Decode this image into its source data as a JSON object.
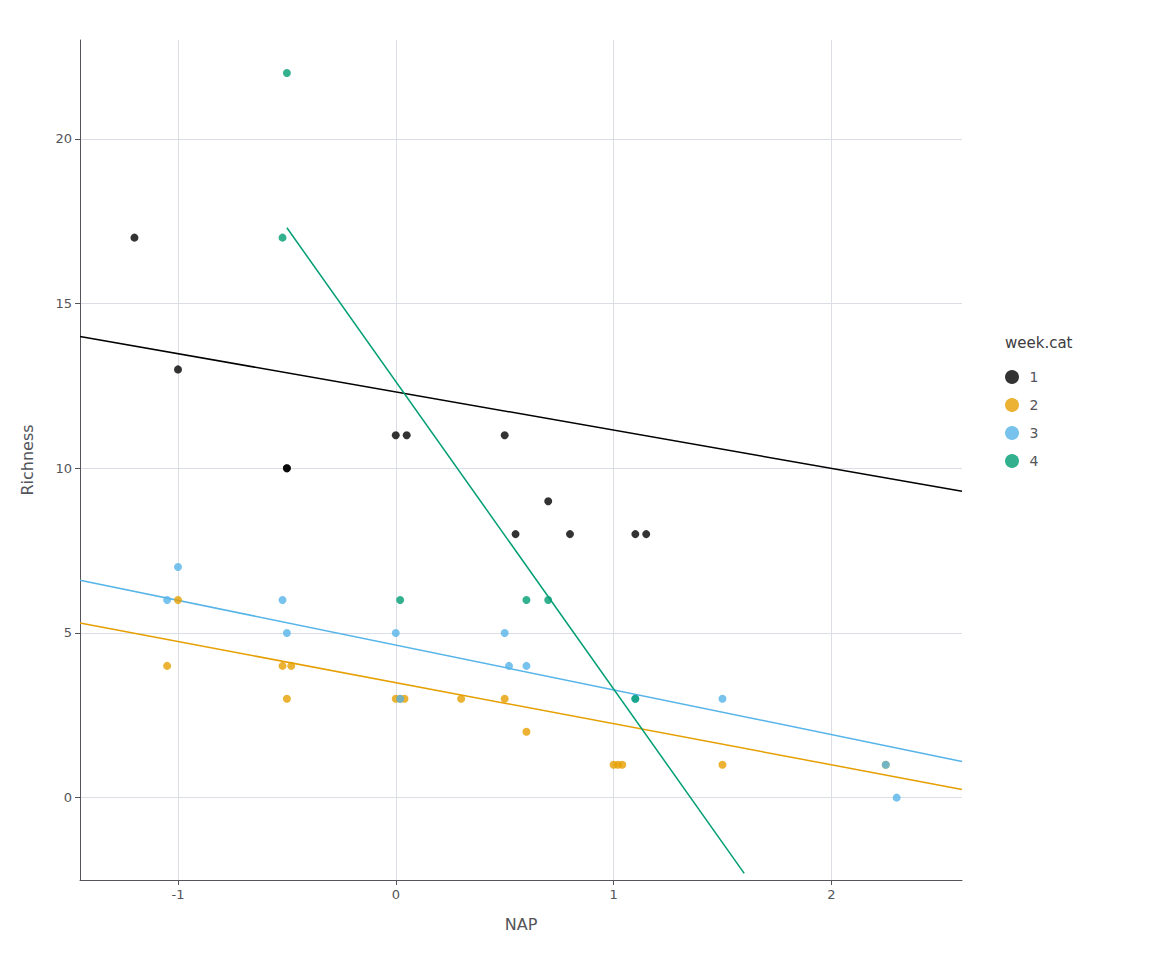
{
  "chart_data": {
    "type": "scatter",
    "xlabel": "NAP",
    "ylabel": "Richness",
    "legend_title": "week.cat",
    "legend": "right",
    "grid": true,
    "xlim": [
      -1.45,
      2.6
    ],
    "ylim": [
      -2.5,
      23.0
    ],
    "xticks": [
      -1,
      0,
      1,
      2
    ],
    "yticks": [
      0,
      5,
      10,
      15,
      20
    ],
    "series": [
      {
        "name": "1",
        "color": "#000000",
        "x": [
          -1.2,
          -1.0,
          -0.5,
          -0.5,
          0.0,
          0.05,
          0.5,
          0.55,
          0.7,
          0.8,
          1.1,
          1.15
        ],
        "y": [
          17,
          13,
          10,
          10,
          11,
          11,
          11,
          8,
          9,
          8,
          8,
          8
        ],
        "line_x": [
          -1.45,
          2.6
        ],
        "line_y": [
          14.0,
          9.3
        ]
      },
      {
        "name": "2",
        "color": "#E69F00",
        "x": [
          -1.0,
          -1.05,
          -0.5,
          -0.52,
          -0.48,
          0.0,
          0.02,
          0.04,
          0.3,
          0.5,
          0.6,
          1.0,
          1.02,
          1.04,
          1.5,
          2.25
        ],
        "y": [
          6,
          4,
          3,
          4,
          4,
          3,
          3,
          3,
          3,
          3,
          2,
          1,
          1,
          1,
          1,
          1
        ],
        "line_x": [
          -1.45,
          2.6
        ],
        "line_y": [
          5.3,
          0.25
        ]
      },
      {
        "name": "3",
        "color": "#56B4E9",
        "x": [
          -1.0,
          -1.05,
          -0.5,
          -0.52,
          0.0,
          0.02,
          0.5,
          0.52,
          0.6,
          1.1,
          1.5,
          2.25,
          2.3
        ],
        "y": [
          7,
          6,
          5,
          6,
          5,
          3,
          5,
          4,
          4,
          3,
          3,
          1,
          0
        ],
        "line_x": [
          -1.45,
          2.6
        ],
        "line_y": [
          6.6,
          1.1
        ]
      },
      {
        "name": "4",
        "color": "#009E73",
        "x": [
          -0.5,
          -0.52,
          0.02,
          0.6,
          0.7,
          1.1
        ],
        "y": [
          22,
          17,
          6,
          6,
          6,
          3
        ],
        "line_x": [
          -0.5,
          1.6
        ],
        "line_y": [
          17.3,
          -2.3
        ]
      }
    ]
  }
}
